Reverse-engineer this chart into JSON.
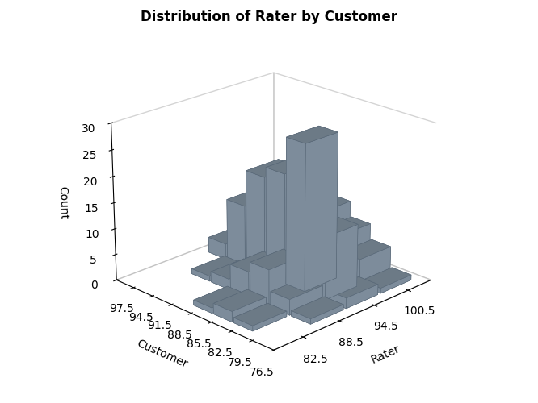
{
  "title": "Distribution of Rater by Customer",
  "xlabel": "Rater",
  "ylabel": "Customer",
  "zlabel": "Count",
  "rater_ticks": [
    82.5,
    88.5,
    94.5,
    100.5
  ],
  "customer_ticks": [
    76.5,
    79.5,
    82.5,
    85.5,
    88.5,
    91.5,
    94.5,
    97.5
  ],
  "rater_edges": [
    79.5,
    85.5,
    91.5,
    97.5,
    103.5
  ],
  "customer_edges": [
    75.0,
    78.0,
    81.0,
    84.0,
    87.0,
    90.0,
    93.0,
    96.0,
    99.0
  ],
  "counts": [
    [
      0,
      0,
      1,
      2,
      1,
      0,
      0,
      0
    ],
    [
      0,
      1,
      3,
      7,
      5,
      2,
      1,
      0
    ],
    [
      0,
      2,
      12,
      28,
      21,
      19,
      12,
      3
    ],
    [
      0,
      1,
      5,
      8,
      11,
      11,
      3,
      1
    ]
  ],
  "bar_color": "#8d9faf",
  "bar_edge_color": "#5a6a7a",
  "zlim": [
    0,
    30
  ],
  "elev": 22,
  "azim": -135,
  "figsize": [
    6.66,
    5.0
  ],
  "dpi": 100
}
